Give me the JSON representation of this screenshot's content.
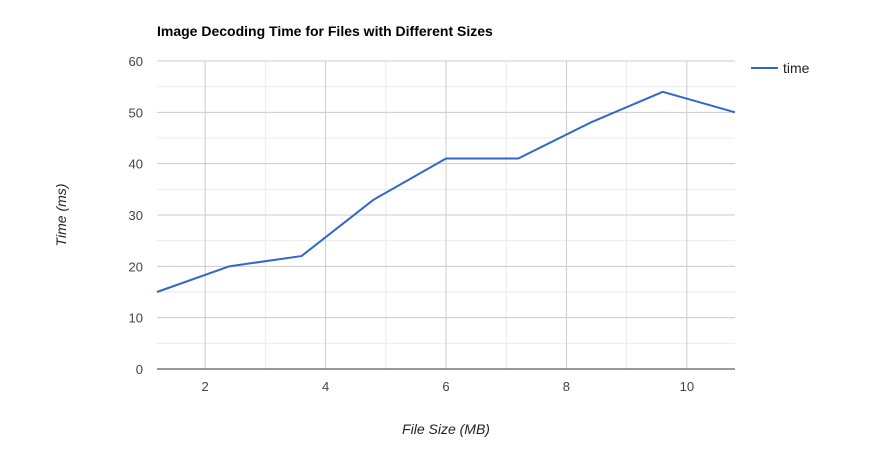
{
  "chart_data": {
    "type": "line",
    "title": "Image Decoding Time for Files with Different Sizes",
    "xlabel": "File Size (MB)",
    "ylabel": "Time (ms)",
    "xlim": [
      1.2,
      10.8
    ],
    "ylim": [
      0,
      60
    ],
    "x_ticks": [
      2,
      4,
      6,
      8,
      10
    ],
    "y_ticks": [
      0,
      10,
      20,
      30,
      40,
      50,
      60
    ],
    "x_tick_labels": [
      "2",
      "4",
      "6",
      "8",
      "10"
    ],
    "y_tick_labels": [
      "0",
      "10",
      "20",
      "30",
      "40",
      "50",
      "60"
    ],
    "grid": true,
    "legend_position": "right",
    "series": [
      {
        "name": "time",
        "color": "#3366cc",
        "x": [
          1.2,
          2.4,
          3.6,
          4.8,
          6.0,
          7.2,
          8.4,
          9.6,
          10.8
        ],
        "y": [
          15,
          20,
          22,
          33,
          41,
          41,
          48,
          54,
          50
        ]
      }
    ]
  }
}
